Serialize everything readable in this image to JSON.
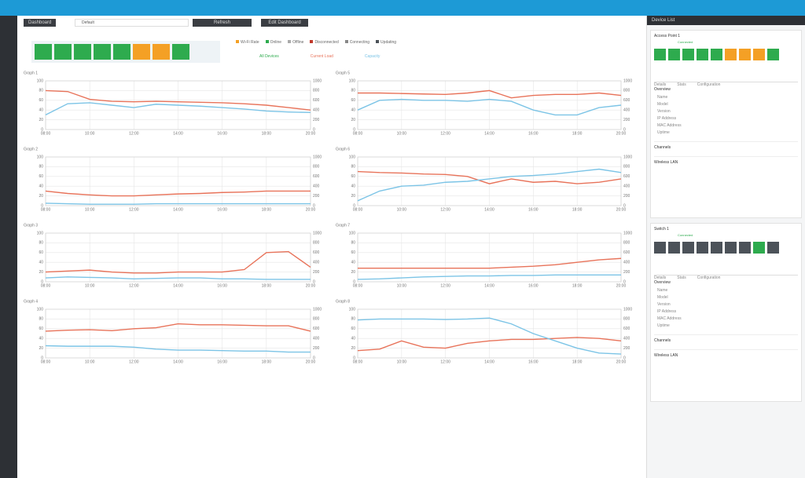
{
  "toolbar": {
    "menu": "Dashboard",
    "site": "Default",
    "refresh": "Refresh",
    "edit": "Edit Dashboard"
  },
  "legend": [
    "Wi-Fi Rate",
    "Online",
    "Offline",
    "Disconnected",
    "Connecting",
    "Updating"
  ],
  "chart_legend": [
    "All Devices",
    "Current Load",
    "Capacity"
  ],
  "chart_data": [
    {
      "type": "line",
      "title": "Graph 1",
      "x": [
        0,
        1,
        2,
        3,
        4,
        5,
        6,
        7,
        8,
        9,
        10,
        11,
        12
      ],
      "xlim": [
        0,
        12
      ],
      "xticks": [
        {
          "value": 0,
          "label": "08:00"
        },
        {
          "value": 2,
          "label": "10:00"
        },
        {
          "value": 4,
          "label": "12:00"
        },
        {
          "value": 6,
          "label": "14:00"
        },
        {
          "value": 8,
          "label": "16:00"
        },
        {
          "value": 10,
          "label": "18:00"
        },
        {
          "value": 12,
          "label": "20:00"
        }
      ],
      "ylim": [
        0,
        100
      ],
      "yticks": [
        0,
        20,
        40,
        60,
        80,
        100
      ],
      "y2lim": [
        0,
        1000
      ],
      "y2ticks": [
        0,
        200,
        400,
        600,
        800,
        1000
      ],
      "grid": true,
      "series": [
        {
          "name": "Current Load",
          "color": "#e8735a",
          "values": [
            80,
            78,
            62,
            58,
            57,
            58,
            57,
            56,
            55,
            53,
            50,
            45,
            40
          ]
        },
        {
          "name": "Capacity",
          "color": "#7cc4e6",
          "axis": "y2",
          "values": [
            300,
            530,
            550,
            500,
            450,
            520,
            500,
            480,
            450,
            420,
            380,
            360,
            350
          ]
        }
      ]
    },
    {
      "type": "line",
      "title": "Graph 2",
      "x": [
        0,
        1,
        2,
        3,
        4,
        5,
        6,
        7,
        8,
        9,
        10,
        11,
        12
      ],
      "xlim": [
        0,
        12
      ],
      "xticks": [
        {
          "value": 0,
          "label": "08:00"
        },
        {
          "value": 2,
          "label": "10:00"
        },
        {
          "value": 4,
          "label": "12:00"
        },
        {
          "value": 6,
          "label": "14:00"
        },
        {
          "value": 8,
          "label": "16:00"
        },
        {
          "value": 10,
          "label": "18:00"
        },
        {
          "value": 12,
          "label": "20:00"
        }
      ],
      "ylim": [
        0,
        100
      ],
      "yticks": [
        0,
        20,
        40,
        60,
        80,
        100
      ],
      "y2lim": [
        0,
        1000
      ],
      "y2ticks": [
        0,
        200,
        400,
        600,
        800,
        1000
      ],
      "grid": true,
      "series": [
        {
          "name": "Current Load",
          "color": "#e8735a",
          "values": [
            30,
            25,
            22,
            20,
            20,
            22,
            24,
            25,
            27,
            28,
            30,
            30,
            30
          ]
        },
        {
          "name": "Capacity",
          "color": "#7cc4e6",
          "axis": "y2",
          "values": [
            50,
            40,
            30,
            30,
            30,
            40,
            40,
            40,
            40,
            40,
            40,
            40,
            40
          ]
        }
      ]
    },
    {
      "type": "line",
      "title": "Graph 3",
      "x": [
        0,
        1,
        2,
        3,
        4,
        5,
        6,
        7,
        8,
        9,
        10,
        11,
        12
      ],
      "xlim": [
        0,
        12
      ],
      "xticks": [
        {
          "value": 0,
          "label": "08:00"
        },
        {
          "value": 2,
          "label": "10:00"
        },
        {
          "value": 4,
          "label": "12:00"
        },
        {
          "value": 6,
          "label": "14:00"
        },
        {
          "value": 8,
          "label": "16:00"
        },
        {
          "value": 10,
          "label": "18:00"
        },
        {
          "value": 12,
          "label": "20:00"
        }
      ],
      "ylim": [
        0,
        100
      ],
      "yticks": [
        0,
        20,
        40,
        60,
        80,
        100
      ],
      "y2lim": [
        0,
        1000
      ],
      "y2ticks": [
        0,
        200,
        400,
        600,
        800,
        1000
      ],
      "grid": true,
      "series": [
        {
          "name": "Current Load",
          "color": "#e8735a",
          "values": [
            20,
            22,
            24,
            20,
            18,
            18,
            20,
            20,
            20,
            25,
            60,
            62,
            30
          ]
        },
        {
          "name": "Capacity",
          "color": "#7cc4e6",
          "axis": "y2",
          "values": [
            80,
            100,
            90,
            80,
            60,
            70,
            80,
            80,
            60,
            60,
            50,
            50,
            50
          ]
        }
      ]
    },
    {
      "type": "line",
      "title": "Graph 4",
      "x": [
        0,
        1,
        2,
        3,
        4,
        5,
        6,
        7,
        8,
        9,
        10,
        11,
        12
      ],
      "xlim": [
        0,
        12
      ],
      "xticks": [
        {
          "value": 0,
          "label": "08:00"
        },
        {
          "value": 2,
          "label": "10:00"
        },
        {
          "value": 4,
          "label": "12:00"
        },
        {
          "value": 6,
          "label": "14:00"
        },
        {
          "value": 8,
          "label": "16:00"
        },
        {
          "value": 10,
          "label": "18:00"
        },
        {
          "value": 12,
          "label": "20:00"
        }
      ],
      "ylim": [
        0,
        100
      ],
      "yticks": [
        0,
        20,
        40,
        60,
        80,
        100
      ],
      "y2lim": [
        0,
        1000
      ],
      "y2ticks": [
        0,
        200,
        400,
        600,
        800,
        1000
      ],
      "grid": true,
      "series": [
        {
          "name": "Current Load",
          "color": "#e8735a",
          "values": [
            55,
            57,
            58,
            56,
            60,
            62,
            70,
            68,
            68,
            67,
            66,
            66,
            55
          ]
        },
        {
          "name": "Capacity",
          "color": "#7cc4e6",
          "axis": "y2",
          "values": [
            250,
            240,
            240,
            240,
            220,
            180,
            160,
            160,
            150,
            140,
            140,
            120,
            120
          ]
        }
      ]
    },
    {
      "type": "line",
      "title": "Graph 5",
      "x": [
        0,
        1,
        2,
        3,
        4,
        5,
        6,
        7,
        8,
        9,
        10,
        11,
        12
      ],
      "xlim": [
        0,
        12
      ],
      "xticks": [
        {
          "value": 0,
          "label": "08:00"
        },
        {
          "value": 2,
          "label": "10:00"
        },
        {
          "value": 4,
          "label": "12:00"
        },
        {
          "value": 6,
          "label": "14:00"
        },
        {
          "value": 8,
          "label": "16:00"
        },
        {
          "value": 10,
          "label": "18:00"
        },
        {
          "value": 12,
          "label": "20:00"
        }
      ],
      "ylim": [
        0,
        100
      ],
      "yticks": [
        0,
        20,
        40,
        60,
        80,
        100
      ],
      "y2lim": [
        0,
        1000
      ],
      "y2ticks": [
        0,
        200,
        400,
        600,
        800,
        1000
      ],
      "grid": true,
      "series": [
        {
          "name": "Current Load",
          "color": "#e8735a",
          "values": [
            75,
            75,
            74,
            73,
            72,
            75,
            80,
            65,
            70,
            72,
            72,
            75,
            70
          ]
        },
        {
          "name": "Capacity",
          "color": "#7cc4e6",
          "axis": "y2",
          "values": [
            400,
            600,
            620,
            600,
            600,
            580,
            620,
            580,
            400,
            300,
            300,
            450,
            500
          ]
        }
      ]
    },
    {
      "type": "line",
      "title": "Graph 6",
      "x": [
        0,
        1,
        2,
        3,
        4,
        5,
        6,
        7,
        8,
        9,
        10,
        11,
        12
      ],
      "xlim": [
        0,
        12
      ],
      "xticks": [
        {
          "value": 0,
          "label": "08:00"
        },
        {
          "value": 2,
          "label": "10:00"
        },
        {
          "value": 4,
          "label": "12:00"
        },
        {
          "value": 6,
          "label": "14:00"
        },
        {
          "value": 8,
          "label": "16:00"
        },
        {
          "value": 10,
          "label": "18:00"
        },
        {
          "value": 12,
          "label": "20:00"
        }
      ],
      "ylim": [
        0,
        100
      ],
      "yticks": [
        0,
        20,
        40,
        60,
        80,
        100
      ],
      "y2lim": [
        0,
        1000
      ],
      "y2ticks": [
        0,
        200,
        400,
        600,
        800,
        1000
      ],
      "grid": true,
      "series": [
        {
          "name": "Current Load",
          "color": "#e8735a",
          "values": [
            70,
            68,
            67,
            65,
            64,
            60,
            45,
            55,
            48,
            50,
            45,
            48,
            55
          ]
        },
        {
          "name": "Capacity",
          "color": "#7cc4e6",
          "axis": "y2",
          "values": [
            100,
            300,
            400,
            420,
            480,
            500,
            550,
            600,
            620,
            650,
            700,
            750,
            680
          ]
        }
      ]
    },
    {
      "type": "line",
      "title": "Graph 7",
      "x": [
        0,
        1,
        2,
        3,
        4,
        5,
        6,
        7,
        8,
        9,
        10,
        11,
        12
      ],
      "xlim": [
        0,
        12
      ],
      "xticks": [
        {
          "value": 0,
          "label": "08:00"
        },
        {
          "value": 2,
          "label": "10:00"
        },
        {
          "value": 4,
          "label": "12:00"
        },
        {
          "value": 6,
          "label": "14:00"
        },
        {
          "value": 8,
          "label": "16:00"
        },
        {
          "value": 10,
          "label": "18:00"
        },
        {
          "value": 12,
          "label": "20:00"
        }
      ],
      "ylim": [
        0,
        100
      ],
      "yticks": [
        0,
        20,
        40,
        60,
        80,
        100
      ],
      "y2lim": [
        0,
        1000
      ],
      "y2ticks": [
        0,
        200,
        400,
        600,
        800,
        1000
      ],
      "grid": true,
      "series": [
        {
          "name": "Current Load",
          "color": "#e8735a",
          "values": [
            28,
            28,
            28,
            28,
            28,
            28,
            28,
            30,
            32,
            35,
            40,
            45,
            48
          ]
        },
        {
          "name": "Capacity",
          "color": "#7cc4e6",
          "axis": "y2",
          "values": [
            50,
            60,
            80,
            100,
            110,
            120,
            120,
            130,
            130,
            140,
            140,
            140,
            140
          ]
        }
      ]
    },
    {
      "type": "line",
      "title": "Graph 8",
      "x": [
        0,
        1,
        2,
        3,
        4,
        5,
        6,
        7,
        8,
        9,
        10,
        11,
        12
      ],
      "xlim": [
        0,
        12
      ],
      "xticks": [
        {
          "value": 0,
          "label": "08:00"
        },
        {
          "value": 2,
          "label": "10:00"
        },
        {
          "value": 4,
          "label": "12:00"
        },
        {
          "value": 6,
          "label": "14:00"
        },
        {
          "value": 8,
          "label": "16:00"
        },
        {
          "value": 10,
          "label": "18:00"
        },
        {
          "value": 12,
          "label": "20:00"
        }
      ],
      "ylim": [
        0,
        100
      ],
      "yticks": [
        0,
        20,
        40,
        60,
        80,
        100
      ],
      "y2lim": [
        0,
        1000
      ],
      "y2ticks": [
        0,
        200,
        400,
        600,
        800,
        1000
      ],
      "grid": true,
      "series": [
        {
          "name": "Current Load",
          "color": "#e8735a",
          "values": [
            15,
            18,
            35,
            22,
            20,
            30,
            35,
            38,
            38,
            40,
            42,
            40,
            35
          ]
        },
        {
          "name": "Capacity",
          "color": "#7cc4e6",
          "axis": "y2",
          "values": [
            780,
            800,
            800,
            800,
            790,
            800,
            820,
            700,
            500,
            350,
            200,
            100,
            80
          ]
        }
      ]
    }
  ],
  "panel": {
    "title": "Device List",
    "devices": [
      {
        "name": "Access Point 1",
        "status": "Connected",
        "tabs": [
          "Details",
          "Stats",
          "Configuration"
        ],
        "section": "Overview",
        "fields": [
          "Name",
          "Model",
          "Version",
          "IP Address",
          "MAC Address",
          "Uptime"
        ],
        "footer": [
          "Channels",
          "Wireless LAN"
        ]
      },
      {
        "name": "Switch 1",
        "status": "Connected",
        "tabs": [
          "Details",
          "Stats",
          "Configuration"
        ],
        "section": "Overview",
        "fields": [
          "Name",
          "Model",
          "Version",
          "IP Address",
          "MAC Address",
          "Uptime"
        ],
        "footer": [
          "Channels",
          "Wireless LAN"
        ]
      }
    ]
  }
}
